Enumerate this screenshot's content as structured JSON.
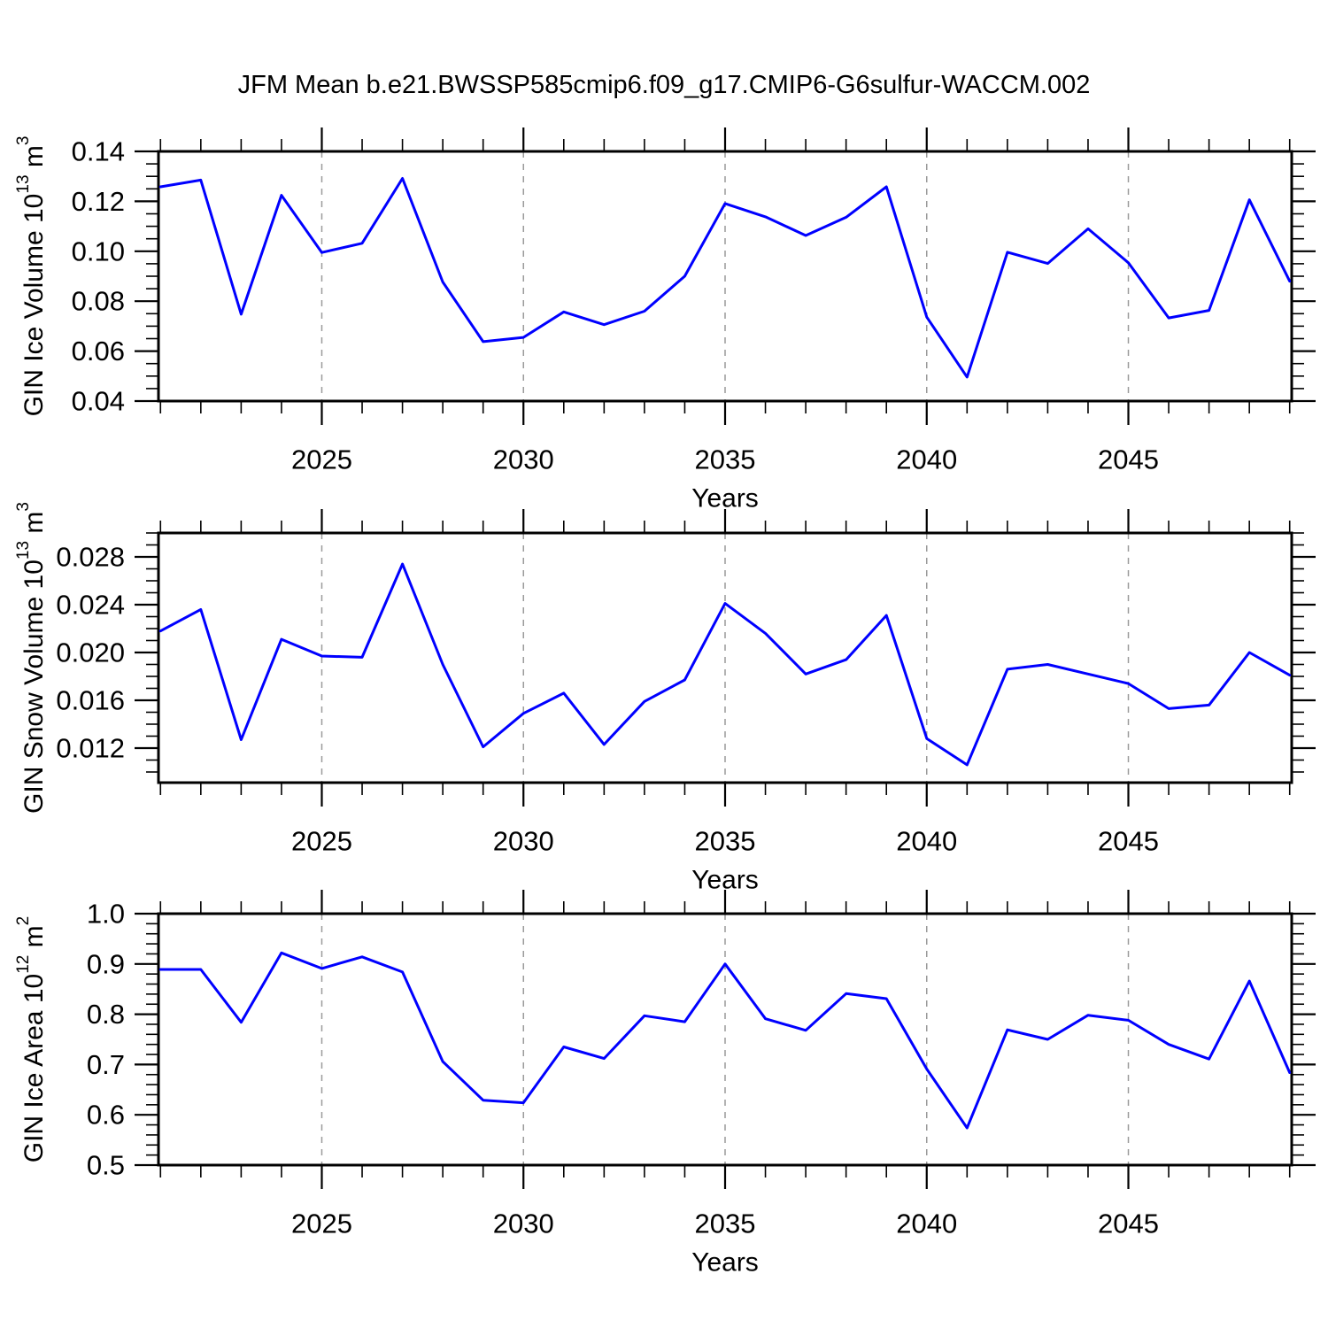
{
  "title": "JFM Mean b.e21.BWSSP585cmip6.f09_g17.CMIP6-G6sulfur-WACCM.002",
  "colors": {
    "line": "#0000ff",
    "grid": "#9a9a9a",
    "axis": "#000000",
    "text": "#000000"
  },
  "chart_data": [
    {
      "type": "line",
      "name": "gin-ice-volume",
      "ylabel": {
        "prefix": "GIN Ice Volume 10",
        "exponent": "13",
        "unit": " m",
        "unit_exponent": "3"
      },
      "xlabel": "Years",
      "x": [
        2021,
        2022,
        2023,
        2024,
        2025,
        2026,
        2027,
        2028,
        2029,
        2030,
        2031,
        2032,
        2033,
        2034,
        2035,
        2036,
        2037,
        2038,
        2039,
        2040,
        2041,
        2042,
        2043,
        2044,
        2045,
        2046,
        2047,
        2048,
        2049
      ],
      "values": [
        0.1258,
        0.1285,
        0.0748,
        0.1224,
        0.0995,
        0.1032,
        0.1292,
        0.0877,
        0.0638,
        0.0655,
        0.0757,
        0.0706,
        0.076,
        0.09,
        0.1191,
        0.1138,
        0.1063,
        0.1136,
        0.1258,
        0.0736,
        0.0496,
        0.0996,
        0.0951,
        0.109,
        0.0954,
        0.0733,
        0.0763,
        0.1206,
        0.088
      ],
      "ylim": [
        0.04,
        0.14
      ],
      "yticks_major": [
        0.04,
        0.06,
        0.08,
        0.1,
        0.12,
        0.14
      ],
      "ytick_labels": [
        "0.04",
        "0.06",
        "0.08",
        "0.10",
        "0.12",
        "0.14"
      ],
      "y_minor_step": 0.005,
      "xlim": [
        2020.95,
        2049.05
      ],
      "xticks_major": [
        2025,
        2030,
        2035,
        2040,
        2045
      ],
      "xtick_labels": [
        "2025",
        "2030",
        "2035",
        "2040",
        "2045"
      ],
      "x_minor_step": 1,
      "grid": "vertical-dashed"
    },
    {
      "type": "line",
      "name": "gin-snow-volume",
      "ylabel": {
        "prefix": "GIN Snow Volume 10",
        "exponent": "13",
        "unit": " m",
        "unit_exponent": "3"
      },
      "xlabel": "Years",
      "x": [
        2021,
        2022,
        2023,
        2024,
        2025,
        2026,
        2027,
        2028,
        2029,
        2030,
        2031,
        2032,
        2033,
        2034,
        2035,
        2036,
        2037,
        2038,
        2039,
        2040,
        2041,
        2042,
        2043,
        2044,
        2045,
        2046,
        2047,
        2048,
        2049
      ],
      "values": [
        0.0218,
        0.0236,
        0.0127,
        0.0211,
        0.0197,
        0.0196,
        0.0274,
        0.019,
        0.0121,
        0.0149,
        0.0166,
        0.0123,
        0.0159,
        0.0177,
        0.0241,
        0.0216,
        0.0182,
        0.0194,
        0.0231,
        0.0128,
        0.0106,
        0.0186,
        0.019,
        0.0182,
        0.0174,
        0.0153,
        0.0156,
        0.02,
        0.0181
      ],
      "ylim": [
        0.00911,
        0.03
      ],
      "yticks_major": [
        0.012,
        0.016,
        0.02,
        0.024,
        0.028
      ],
      "ytick_labels": [
        "0.012",
        "0.016",
        "0.020",
        "0.024",
        "0.028"
      ],
      "y_minor_step": 0.001,
      "xlim": [
        2020.95,
        2049.05
      ],
      "xticks_major": [
        2025,
        2030,
        2035,
        2040,
        2045
      ],
      "xtick_labels": [
        "2025",
        "2030",
        "2035",
        "2040",
        "2045"
      ],
      "x_minor_step": 1,
      "grid": "vertical-dashed"
    },
    {
      "type": "line",
      "name": "gin-ice-area",
      "ylabel": {
        "prefix": "GIN Ice Area 10",
        "exponent": "12",
        "unit": " m",
        "unit_exponent": "2"
      },
      "xlabel": "Years",
      "x": [
        2021,
        2022,
        2023,
        2024,
        2025,
        2026,
        2027,
        2028,
        2029,
        2030,
        2031,
        2032,
        2033,
        2034,
        2035,
        2036,
        2037,
        2038,
        2039,
        2040,
        2041,
        2042,
        2043,
        2044,
        2045,
        2046,
        2047,
        2048,
        2049
      ],
      "values": [
        0.889,
        0.889,
        0.784,
        0.922,
        0.891,
        0.914,
        0.884,
        0.706,
        0.629,
        0.624,
        0.735,
        0.712,
        0.797,
        0.785,
        0.9,
        0.791,
        0.768,
        0.841,
        0.831,
        0.691,
        0.574,
        0.769,
        0.75,
        0.798,
        0.788,
        0.74,
        0.711,
        0.866,
        0.684
      ],
      "ylim": [
        0.5,
        1.0
      ],
      "yticks_major": [
        0.5,
        0.6,
        0.7,
        0.8,
        0.9,
        1.0
      ],
      "ytick_labels": [
        "0.5",
        "0.6",
        "0.7",
        "0.8",
        "0.9",
        "1.0"
      ],
      "y_minor_step": 0.02,
      "xlim": [
        2020.95,
        2049.05
      ],
      "xticks_major": [
        2025,
        2030,
        2035,
        2040,
        2045
      ],
      "xtick_labels": [
        "2025",
        "2030",
        "2035",
        "2040",
        "2045"
      ],
      "x_minor_step": 1,
      "grid": "vertical-dashed"
    }
  ]
}
